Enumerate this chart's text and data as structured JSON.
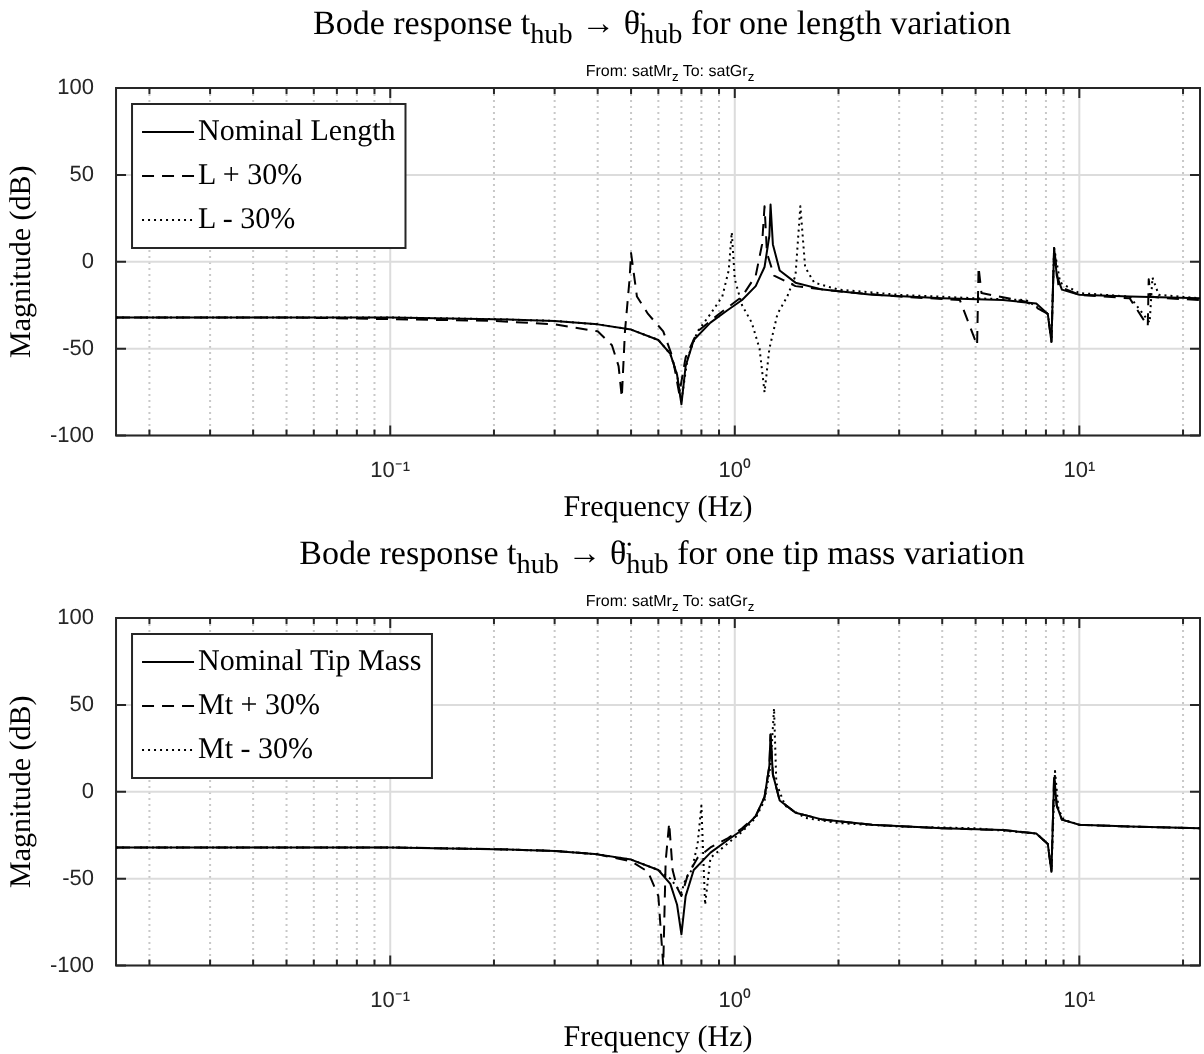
{
  "chart_data": [
    {
      "type": "line",
      "title": "Bode response t$_{hub}$ → θ̈$_{hub}$ for one length variation",
      "subtitle": "From: satMr$_{z}$  To: satGr$_{z}$",
      "xlabel": "Frequency (Hz)",
      "ylabel": "Magnitude (dB)",
      "log": "x",
      "grid": true,
      "legend": "top left",
      "marker": "none",
      "xlim": [
        0.016,
        22.4
      ],
      "ylim": [
        -100,
        100
      ],
      "yticks": [
        -100,
        -50,
        0,
        50,
        100
      ],
      "xticks": [
        {
          "value": 0.02,
          "label": null
        },
        {
          "value": 0.03,
          "label": null
        },
        {
          "value": 0.04,
          "label": null
        },
        {
          "value": 0.05,
          "label": null
        },
        {
          "value": 0.06,
          "label": null
        },
        {
          "value": 0.07,
          "label": null
        },
        {
          "value": 0.08,
          "label": null
        },
        {
          "value": 0.09,
          "label": null
        },
        {
          "value": 0.1,
          "label": "10⁻¹"
        },
        {
          "value": 0.2,
          "label": null
        },
        {
          "value": 0.3,
          "label": null
        },
        {
          "value": 0.4,
          "label": null
        },
        {
          "value": 0.5,
          "label": null
        },
        {
          "value": 0.6,
          "label": null
        },
        {
          "value": 0.7,
          "label": null
        },
        {
          "value": 0.8,
          "label": null
        },
        {
          "value": 0.9,
          "label": null
        },
        {
          "value": 1,
          "label": "10⁰"
        },
        {
          "value": 2,
          "label": null
        },
        {
          "value": 3,
          "label": null
        },
        {
          "value": 4,
          "label": null
        },
        {
          "value": 5,
          "label": null
        },
        {
          "value": 6,
          "label": null
        },
        {
          "value": 7,
          "label": null
        },
        {
          "value": 8,
          "label": null
        },
        {
          "value": 9,
          "label": null
        },
        {
          "value": 10,
          "label": "10¹"
        },
        {
          "value": 20,
          "label": null
        }
      ],
      "series": [
        {
          "name": "Nominal Length",
          "color": "#000000",
          "line_style": "solid",
          "x": [
            0.016,
            0.05,
            0.1,
            0.2,
            0.3,
            0.4,
            0.5,
            0.6,
            0.65,
            0.68,
            0.7,
            0.72,
            0.76,
            0.85,
            0.95,
            1.05,
            1.15,
            1.22,
            1.26,
            1.27,
            1.29,
            1.35,
            1.5,
            1.8,
            2.5,
            4,
            6,
            7.5,
            8.1,
            8.3,
            8.45,
            8.6,
            8.9,
            10,
            14,
            22.4
          ],
          "values": [
            -32,
            -32,
            -32,
            -33,
            -34,
            -36,
            -39,
            -45,
            -53,
            -65,
            -82,
            -60,
            -45,
            -35,
            -28,
            -22,
            -14,
            -3,
            15,
            33,
            10,
            -5,
            -12,
            -16,
            -19,
            -21,
            -22,
            -24,
            -30,
            -46,
            8,
            -8,
            -16,
            -19,
            -20,
            -21
          ]
        },
        {
          "name": "L + 30%",
          "color": "#000000",
          "line_style": "dashed",
          "x": [
            0.016,
            0.05,
            0.1,
            0.2,
            0.3,
            0.4,
            0.44,
            0.46,
            0.47,
            0.48,
            0.495,
            0.5,
            0.52,
            0.56,
            0.62,
            0.66,
            0.69,
            0.72,
            0.78,
            0.9,
            1.05,
            1.15,
            1.2,
            1.22,
            1.24,
            1.3,
            1.5,
            2,
            3,
            4.5,
            5.05,
            5.1,
            5.2,
            7,
            8.1,
            8.3,
            8.45,
            8.7,
            10,
            14,
            15.8,
            15.9,
            16.1,
            18,
            22.4
          ],
          "values": [
            -32,
            -32,
            -33,
            -34,
            -36,
            -40,
            -48,
            -60,
            -78,
            -40,
            -10,
            5,
            -20,
            -30,
            -40,
            -55,
            -76,
            -55,
            -40,
            -30,
            -20,
            -8,
            10,
            32,
            5,
            -8,
            -14,
            -17,
            -20,
            -22,
            -48,
            -3,
            -18,
            -23,
            -30,
            -46,
            8,
            -14,
            -19,
            -21,
            -37,
            -10,
            -20,
            -21,
            -22
          ]
        },
        {
          "name": "L - 30%",
          "color": "#000000",
          "line_style": "dotted",
          "x": [
            0.016,
            0.05,
            0.1,
            0.2,
            0.3,
            0.4,
            0.5,
            0.6,
            0.65,
            0.68,
            0.7,
            0.73,
            0.78,
            0.85,
            0.92,
            0.96,
            0.98,
            1.0,
            1.05,
            1.12,
            1.18,
            1.22,
            1.26,
            1.33,
            1.42,
            1.5,
            1.55,
            1.6,
            1.7,
            2,
            3,
            5,
            7,
            8.1,
            8.3,
            8.45,
            8.8,
            10,
            14,
            16,
            16.3,
            17,
            22.4
          ],
          "values": [
            -32,
            -32,
            -32,
            -33,
            -34,
            -36,
            -39,
            -45,
            -53,
            -65,
            -80,
            -55,
            -40,
            -30,
            -20,
            -5,
            17,
            -10,
            -25,
            -35,
            -50,
            -75,
            -50,
            -30,
            -20,
            -8,
            32,
            -3,
            -12,
            -16,
            -19,
            -21,
            -22,
            -30,
            -45,
            8,
            -12,
            -18,
            -20,
            -35,
            -9,
            -19,
            -21
          ]
        }
      ]
    },
    {
      "type": "line",
      "title": "Bode response t$_{hub}$ → θ̈$_{hub}$ for one tip mass variation",
      "subtitle": "From: satMr$_{z}$  To: satGr$_{z}$",
      "xlabel": "Frequency (Hz)",
      "ylabel": "Magnitude (dB)",
      "log": "x",
      "grid": true,
      "legend": "top left",
      "marker": "none",
      "xlim": [
        0.016,
        22.4
      ],
      "ylim": [
        -100,
        100
      ],
      "yticks": [
        -100,
        -50,
        0,
        50,
        100
      ],
      "xticks": [
        {
          "value": 0.02,
          "label": null
        },
        {
          "value": 0.03,
          "label": null
        },
        {
          "value": 0.04,
          "label": null
        },
        {
          "value": 0.05,
          "label": null
        },
        {
          "value": 0.06,
          "label": null
        },
        {
          "value": 0.07,
          "label": null
        },
        {
          "value": 0.08,
          "label": null
        },
        {
          "value": 0.09,
          "label": null
        },
        {
          "value": 0.1,
          "label": "10⁻¹"
        },
        {
          "value": 0.2,
          "label": null
        },
        {
          "value": 0.3,
          "label": null
        },
        {
          "value": 0.4,
          "label": null
        },
        {
          "value": 0.5,
          "label": null
        },
        {
          "value": 0.6,
          "label": null
        },
        {
          "value": 0.7,
          "label": null
        },
        {
          "value": 0.8,
          "label": null
        },
        {
          "value": 0.9,
          "label": null
        },
        {
          "value": 1,
          "label": "10⁰"
        },
        {
          "value": 2,
          "label": null
        },
        {
          "value": 3,
          "label": null
        },
        {
          "value": 4,
          "label": null
        },
        {
          "value": 5,
          "label": null
        },
        {
          "value": 6,
          "label": null
        },
        {
          "value": 7,
          "label": null
        },
        {
          "value": 8,
          "label": null
        },
        {
          "value": 9,
          "label": null
        },
        {
          "value": 10,
          "label": "10¹"
        },
        {
          "value": 20,
          "label": null
        }
      ],
      "series": [
        {
          "name": "Nominal Tip Mass",
          "color": "#000000",
          "line_style": "solid",
          "x": [
            0.016,
            0.05,
            0.1,
            0.2,
            0.3,
            0.4,
            0.5,
            0.6,
            0.65,
            0.68,
            0.7,
            0.72,
            0.76,
            0.85,
            0.95,
            1.05,
            1.15,
            1.22,
            1.26,
            1.27,
            1.29,
            1.35,
            1.5,
            1.8,
            2.5,
            4,
            6,
            7.5,
            8.1,
            8.3,
            8.45,
            8.6,
            8.9,
            10,
            14,
            22.4
          ],
          "values": [
            -32,
            -32,
            -32,
            -33,
            -34,
            -36,
            -39,
            -45,
            -53,
            -65,
            -82,
            -60,
            -45,
            -35,
            -28,
            -22,
            -14,
            -3,
            15,
            33,
            10,
            -5,
            -12,
            -16,
            -19,
            -21,
            -22,
            -24,
            -30,
            -46,
            8,
            -8,
            -16,
            -19,
            -20,
            -21
          ]
        },
        {
          "name": "Mt + 30%",
          "color": "#000000",
          "line_style": "dashed",
          "x": [
            0.016,
            0.05,
            0.1,
            0.2,
            0.3,
            0.4,
            0.5,
            0.56,
            0.6,
            0.62,
            0.63,
            0.645,
            0.66,
            0.68,
            0.7,
            0.73,
            0.78,
            0.85,
            0.95,
            1.05,
            1.15,
            1.22,
            1.26,
            1.27,
            1.29,
            1.35,
            1.5,
            1.8,
            2.5,
            4,
            6,
            7.5,
            8.1,
            8.3,
            8.45,
            8.6,
            8.9,
            10,
            14,
            22.4
          ],
          "values": [
            -32,
            -32,
            -32,
            -33,
            -34,
            -36,
            -40,
            -46,
            -60,
            -100,
            -40,
            -18,
            -45,
            -55,
            -60,
            -48,
            -38,
            -32,
            -27,
            -21,
            -14,
            -3,
            15,
            33,
            10,
            -5,
            -12,
            -16,
            -19,
            -21,
            -22,
            -24,
            -30,
            -46,
            10,
            -8,
            -16,
            -19,
            -20,
            -21
          ]
        },
        {
          "name": "Mt - 30%",
          "color": "#000000",
          "line_style": "dotted",
          "x": [
            0.016,
            0.05,
            0.1,
            0.2,
            0.3,
            0.4,
            0.5,
            0.6,
            0.65,
            0.68,
            0.7,
            0.72,
            0.75,
            0.78,
            0.8,
            0.82,
            0.85,
            0.95,
            1.05,
            1.15,
            1.22,
            1.27,
            1.3,
            1.32,
            1.4,
            1.6,
            2,
            3,
            5,
            7.5,
            8.1,
            8.3,
            8.5,
            8.7,
            9,
            10,
            14,
            22.4
          ],
          "values": [
            -32,
            -32,
            -32,
            -33,
            -34,
            -36,
            -39,
            -45,
            -50,
            -55,
            -58,
            -50,
            -45,
            -30,
            -8,
            -65,
            -38,
            -30,
            -23,
            -15,
            -5,
            15,
            48,
            5,
            -8,
            -15,
            -18,
            -20,
            -21,
            -24,
            -30,
            -45,
            12,
            -10,
            -16,
            -19,
            -20,
            -21
          ]
        }
      ]
    }
  ]
}
